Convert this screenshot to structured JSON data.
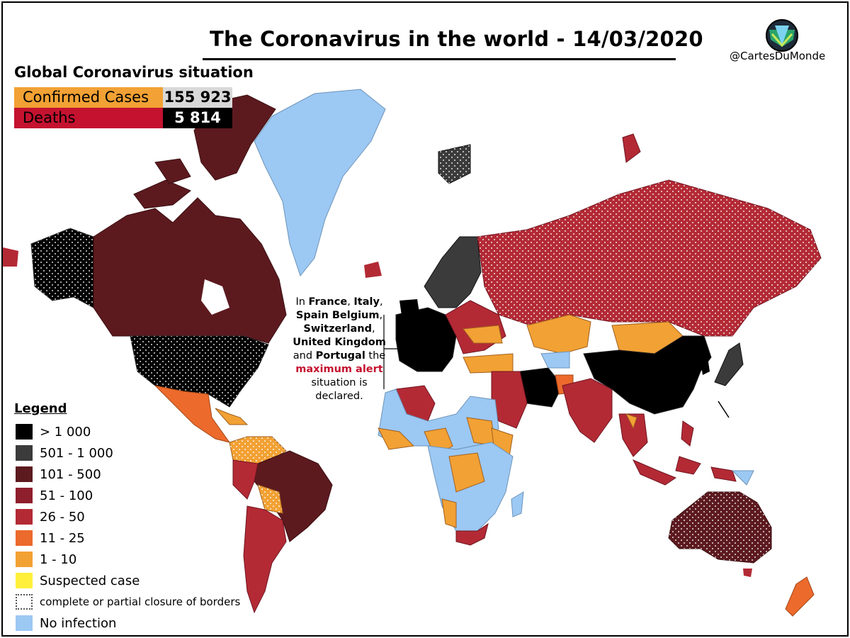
{
  "header": {
    "title": "The Coronavirus in the world - 14/03/2020",
    "credit": "@CartesDuMonde"
  },
  "global": {
    "heading": "Global Coronavirus situation",
    "confirmed_label": "Confirmed Cases",
    "confirmed_value": "155 923",
    "deaths_label": "Deaths",
    "deaths_value": "5 814"
  },
  "legend": {
    "title": "Legend",
    "items": [
      {
        "label": "> 1 000",
        "color": "#000000"
      },
      {
        "label": "501 - 1 000",
        "color": "#3b3b3b"
      },
      {
        "label": "101 - 500",
        "color": "#5c1a1f"
      },
      {
        "label": "51 - 100",
        "color": "#8f1f2d"
      },
      {
        "label": "26 - 50",
        "color": "#b32a35"
      },
      {
        "label": "11 - 25",
        "color": "#ec6a2c"
      },
      {
        "label": "1 - 10",
        "color": "#f2a134"
      },
      {
        "label": "Suspected case",
        "color": "#ffef3a"
      },
      {
        "label": "complete or partial closure of borders",
        "color": "dotted"
      },
      {
        "label": "No infection",
        "color": "#9cc8f4"
      }
    ]
  },
  "callout": {
    "part1": "In ",
    "b1": "France",
    "part2": ", ",
    "b2": "Italy",
    "part3": ", ",
    "b3": "Spain Belgium",
    "part4": ", ",
    "b4": "Switzerland",
    "part5": ", ",
    "b5": "United Kingdom",
    "part6": " and ",
    "b6": "Portugal",
    "part7": " the ",
    "red": "maximum alert",
    "part8": " situation is declared."
  },
  "colors": {
    "confirmed_bg": "#f2a134",
    "confirmed_value_bg": "#d9d9d9",
    "deaths_bg": "#c4122f",
    "deaths_value_bg": "#000000",
    "ocean": "#ffffff",
    "no_infection": "#9cc8f4"
  }
}
